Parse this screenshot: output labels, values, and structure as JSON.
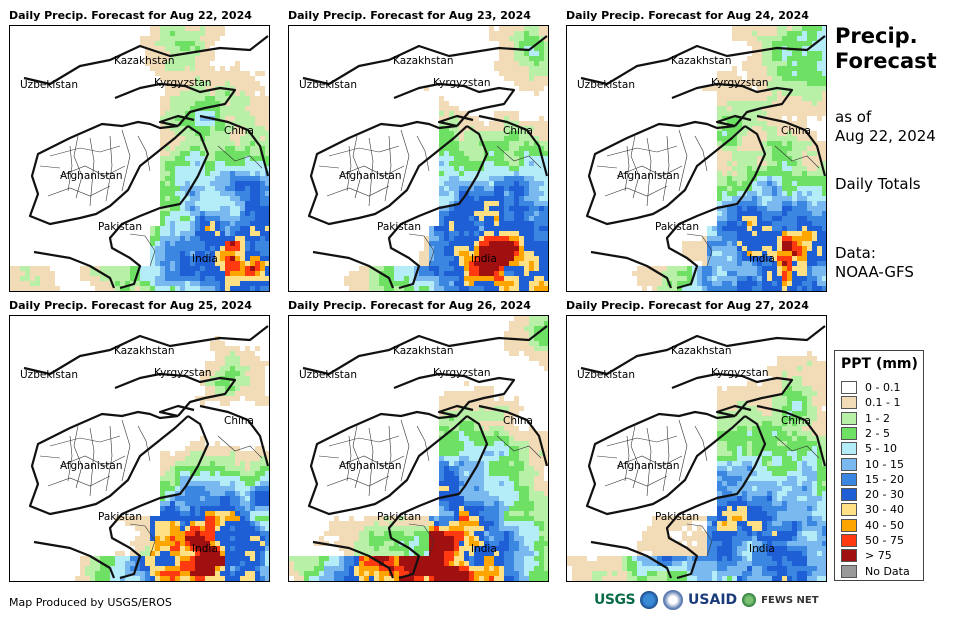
{
  "panels": [
    {
      "title": "Daily Precip. Forecast for Aug 22, 2024"
    },
    {
      "title": "Daily Precip. Forecast for Aug 23, 2024"
    },
    {
      "title": "Daily Precip. Forecast for Aug 24, 2024"
    },
    {
      "title": "Daily Precip. Forecast for Aug 25, 2024"
    },
    {
      "title": "Daily Precip. Forecast for Aug 26, 2024"
    },
    {
      "title": "Daily Precip. Forecast for Aug 27, 2024"
    }
  ],
  "country_labels": {
    "kazakhstan": "Kazakhstan",
    "uzbekistan": "Uzbekistan",
    "kyrgyzstan": "Kyrgyzstan",
    "china": "China",
    "afghanistan": "Afghanistan",
    "pakistan": "Pakistan",
    "india": "India"
  },
  "side": {
    "title_line1": "Precip.",
    "title_line2": "Forecast",
    "as_of_line1": "as of",
    "as_of_line2": "Aug 22, 2024",
    "daily_totals": "Daily Totals",
    "data_line1": "Data:",
    "data_line2": "NOAA-GFS"
  },
  "legend": {
    "title": "PPT (mm)",
    "items": [
      {
        "label": "0 - 0.1",
        "color": "#ffffff"
      },
      {
        "label": "0.1 - 1",
        "color": "#f2dcb8"
      },
      {
        "label": "1 - 2",
        "color": "#b8f0a8"
      },
      {
        "label": "2 - 5",
        "color": "#6ee064"
      },
      {
        "label": "5 - 10",
        "color": "#b4ecf8"
      },
      {
        "label": "10 - 15",
        "color": "#7ab8f0"
      },
      {
        "label": "15 - 20",
        "color": "#3a86e0"
      },
      {
        "label": "20 - 30",
        "color": "#1f5fd6"
      },
      {
        "label": "30 - 40",
        "color": "#ffe084"
      },
      {
        "label": "40 - 50",
        "color": "#ffa500"
      },
      {
        "label": "50 - 75",
        "color": "#ff3a10"
      },
      {
        "label": "> 75",
        "color": "#a01010"
      },
      {
        "label": "No Data",
        "color": "#999999"
      }
    ]
  },
  "credit": "Map Produced by USGS/EROS",
  "logos": {
    "usgs": "USGS",
    "usaid": "USAID",
    "fews": "FEWS NET"
  }
}
